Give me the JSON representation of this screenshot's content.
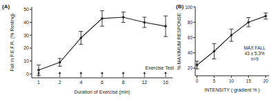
{
  "chart_data": [
    {
      "type": "line",
      "title": "(A)",
      "x_label": "Duration of Exercise (min)",
      "y_label": "Fall in P.E.F.R. (% Resting)",
      "categories": [
        "1",
        "2",
        "4",
        "6",
        "8",
        "12",
        "16"
      ],
      "values": [
        3,
        9,
        28,
        43,
        44,
        40,
        37
      ],
      "errors": [
        4,
        3,
        5,
        6,
        4,
        4,
        8
      ],
      "ylim": [
        -3,
        52
      ],
      "yticks": [
        0,
        10,
        20,
        30,
        40,
        50
      ],
      "annotations": [
        "Exercise Test"
      ],
      "color": "#222222",
      "marker": "circle",
      "grid": false
    },
    {
      "type": "line",
      "title": "(B)",
      "x_label": "INTENSITY ( gradient % )",
      "y_label": "% MAXIMUM RESPONSE",
      "x": [
        0,
        5,
        10,
        15,
        20
      ],
      "values": [
        24,
        42,
        63,
        80,
        88
      ],
      "errors": [
        5,
        10,
        8,
        6,
        4
      ],
      "xlim": [
        -0.5,
        21
      ],
      "xticks": [
        0,
        5,
        10,
        15,
        20
      ],
      "ylim": [
        10,
        100
      ],
      "yticks": [
        20,
        40,
        60,
        80,
        100
      ],
      "annotations": [
        "MAX FALL",
        "43 ± 5.3%",
        "n=9"
      ],
      "color": "#222222",
      "marker": "circle",
      "grid": false
    }
  ]
}
